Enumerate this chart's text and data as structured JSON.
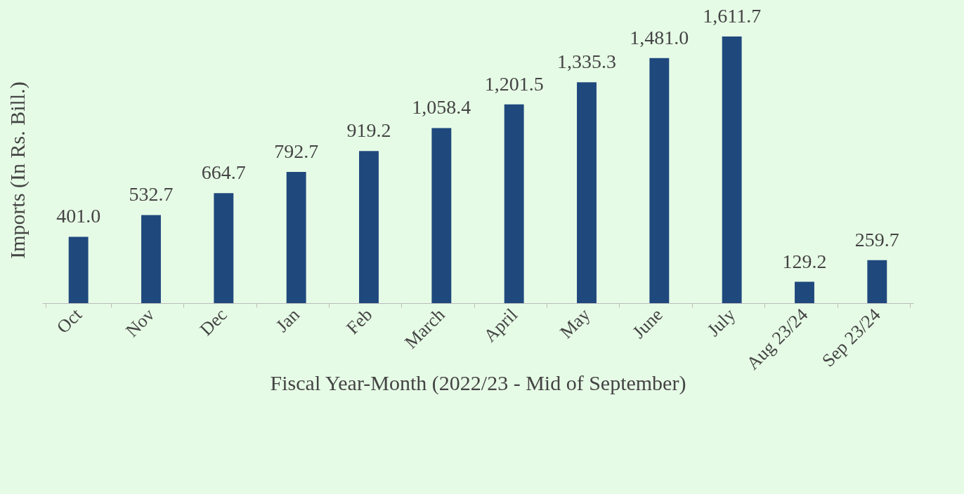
{
  "chart_data": {
    "type": "bar",
    "xlabel": "Fiscal Year-Month (2022/23 - Mid of September)",
    "ylabel": "Imports (In Rs. Bill.)",
    "categories": [
      "Oct",
      "Nov",
      "Dec",
      "Jan",
      "Feb",
      "March",
      "April",
      "May",
      "June",
      "July",
      "Aug 23/24",
      "Sep 23/24"
    ],
    "values": [
      401.0,
      532.7,
      664.7,
      792.7,
      919.2,
      1058.4,
      1201.5,
      1335.3,
      1481.0,
      1611.7,
      129.2,
      259.7
    ],
    "value_labels": [
      "401.0",
      "532.7",
      "664.7",
      "792.7",
      "919.2",
      "1,058.4",
      "1,201.5",
      "1,335.3",
      "1,481.0",
      "1,611.7",
      "129.2",
      "259.7"
    ],
    "color": "#1f497d",
    "grid": false
  }
}
